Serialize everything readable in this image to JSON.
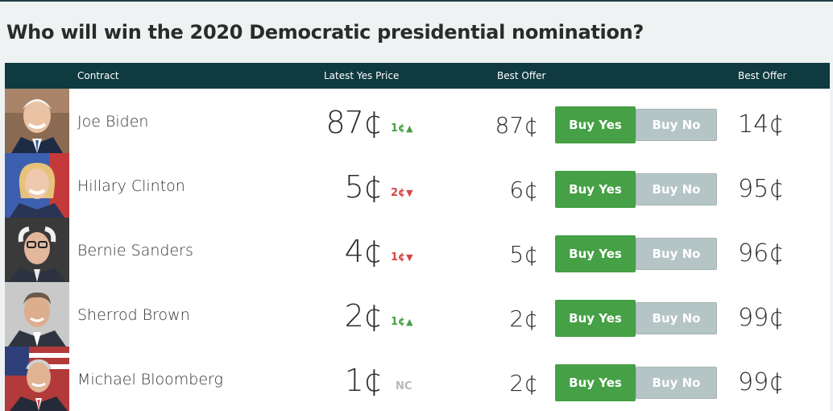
{
  "page": {
    "title": "Who will win the 2020 Democratic presidential nomination?"
  },
  "table": {
    "headers": {
      "contract": "Contract",
      "latest_yes_price": "Latest Yes Price",
      "best_offer_yes": "Best Offer",
      "best_offer_no": "Best Offer"
    },
    "buy_yes_label": "Buy Yes",
    "buy_no_label": "Buy No",
    "rows": [
      {
        "name": "Joe Biden",
        "price": "87¢",
        "change": "1¢",
        "direction": "up",
        "best_yes": "87¢",
        "best_no": "14¢"
      },
      {
        "name": "Hillary Clinton",
        "price": "5¢",
        "change": "2¢",
        "direction": "down",
        "best_yes": "6¢",
        "best_no": "95¢"
      },
      {
        "name": "Bernie Sanders",
        "price": "4¢",
        "change": "1¢",
        "direction": "down",
        "best_yes": "5¢",
        "best_no": "96¢"
      },
      {
        "name": "Sherrod Brown",
        "price": "2¢",
        "change": "1¢",
        "direction": "up",
        "best_yes": "2¢",
        "best_no": "99¢"
      },
      {
        "name": "Michael Bloomberg",
        "price": "1¢",
        "change": "NC",
        "direction": "none",
        "best_yes": "2¢",
        "best_no": "99¢"
      }
    ]
  },
  "colors": {
    "header_bg": "#0f3a40",
    "buy_yes": "#45a046",
    "buy_no": "#b5c4c4",
    "up": "#4a9e4a",
    "down": "#d64545",
    "nc": "#b8b8b8"
  }
}
